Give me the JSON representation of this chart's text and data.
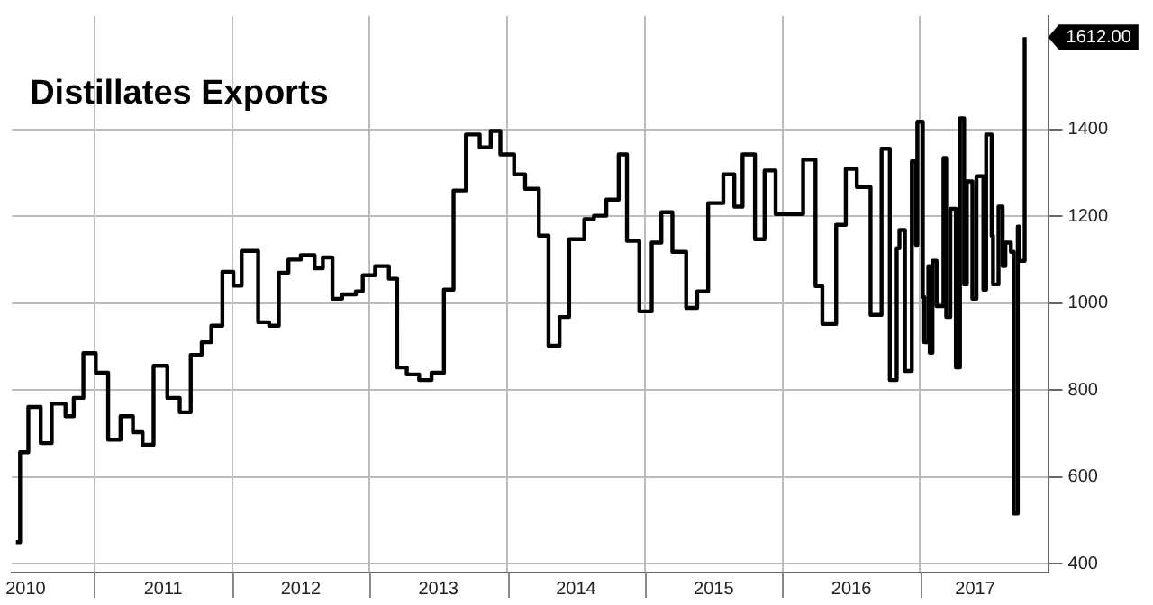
{
  "chart_data": {
    "type": "step",
    "title": "Distillates Exports",
    "x": [
      2010.43,
      2010.46,
      2010.52,
      2010.61,
      2010.69,
      2010.79,
      2010.85,
      2010.92,
      2011.01,
      2011.1,
      2011.19,
      2011.28,
      2011.35,
      2011.43,
      2011.53,
      2011.62,
      2011.7,
      2011.78,
      2011.85,
      2011.93,
      2012.01,
      2012.07,
      2012.19,
      2012.27,
      2012.34,
      2012.41,
      2012.5,
      2012.6,
      2012.66,
      2012.73,
      2012.8,
      2012.9,
      2012.95,
      2013.04,
      2013.14,
      2013.2,
      2013.27,
      2013.36,
      2013.45,
      2013.54,
      2013.61,
      2013.7,
      2013.8,
      2013.88,
      2013.95,
      2014.05,
      2014.13,
      2014.23,
      2014.3,
      2014.38,
      2014.45,
      2014.56,
      2014.63,
      2014.72,
      2014.81,
      2014.87,
      2014.96,
      2015.05,
      2015.12,
      2015.2,
      2015.3,
      2015.38,
      2015.46,
      2015.57,
      2015.65,
      2015.71,
      2015.8,
      2015.87,
      2015.95,
      2016.15,
      2016.24,
      2016.29,
      2016.39,
      2016.46,
      2016.54,
      2016.64,
      2016.72,
      2016.78,
      2016.83,
      2016.85,
      2016.89,
      2016.94,
      2016.97,
      2016.98,
      2017.02,
      2017.03,
      2017.06,
      2017.07,
      2017.09,
      2017.12,
      2017.17,
      2017.19,
      2017.22,
      2017.26,
      2017.29,
      2017.32,
      2017.34,
      2017.38,
      2017.41,
      2017.46,
      2017.48,
      2017.52,
      2017.53,
      2017.57,
      2017.6,
      2017.62,
      2017.66,
      2017.68,
      2017.71,
      2017.72,
      2017.76
    ],
    "values": [
      450,
      657,
      761,
      678,
      769,
      740,
      782,
      885,
      840,
      686,
      740,
      703,
      674,
      856,
      782,
      749,
      881,
      910,
      948,
      1072,
      1040,
      1120,
      956,
      948,
      1070,
      1100,
      1110,
      1080,
      1105,
      1010,
      1020,
      1027,
      1064,
      1085,
      1056,
      852,
      836,
      823,
      840,
      1031,
      1259,
      1388,
      1358,
      1396,
      1342,
      1296,
      1263,
      1155,
      902,
      968,
      1147,
      1193,
      1201,
      1238,
      1342,
      1143,
      981,
      1139,
      1209,
      1118,
      989,
      1027,
      1230,
      1296,
      1222,
      1342,
      1147,
      1305,
      1205,
      1330,
      1039,
      952,
      1180,
      1309,
      1267,
      973,
      1355,
      823,
      1126,
      1168,
      844,
      1326,
      1134,
      1417,
      1014,
      910,
      1085,
      886,
      1097,
      993,
      1334,
      968,
      1217,
      852,
      1425,
      1043,
      1280,
      1010,
      1292,
      1031,
      1388,
      1155,
      1043,
      1222,
      1085,
      1139,
      1118,
      516,
      1176,
      1097,
      1612
    ],
    "color": "#000000",
    "xlim": [
      2010.4,
      2017.93
    ],
    "xticks": [
      {
        "value": 2010.5,
        "label": "2010"
      },
      {
        "value": 2011,
        "label": null
      },
      {
        "value": 2011.5,
        "label": "2011"
      },
      {
        "value": 2012,
        "label": null
      },
      {
        "value": 2012.5,
        "label": "2012"
      },
      {
        "value": 2013,
        "label": null
      },
      {
        "value": 2013.5,
        "label": "2013"
      },
      {
        "value": 2014,
        "label": null
      },
      {
        "value": 2014.5,
        "label": "2014"
      },
      {
        "value": 2015,
        "label": null
      },
      {
        "value": 2015.5,
        "label": "2015"
      },
      {
        "value": 2016,
        "label": null
      },
      {
        "value": 2016.5,
        "label": "2016"
      },
      {
        "value": 2017,
        "label": null
      },
      {
        "value": 2017.4,
        "label": "2017"
      }
    ],
    "ylim": [
      380,
      1660
    ],
    "yticks": [
      400,
      600,
      800,
      1000,
      1200,
      1400
    ],
    "annotations": [
      "1612.00"
    ],
    "grid": true,
    "legend": false,
    "marker": "none",
    "line_style": "solid"
  }
}
